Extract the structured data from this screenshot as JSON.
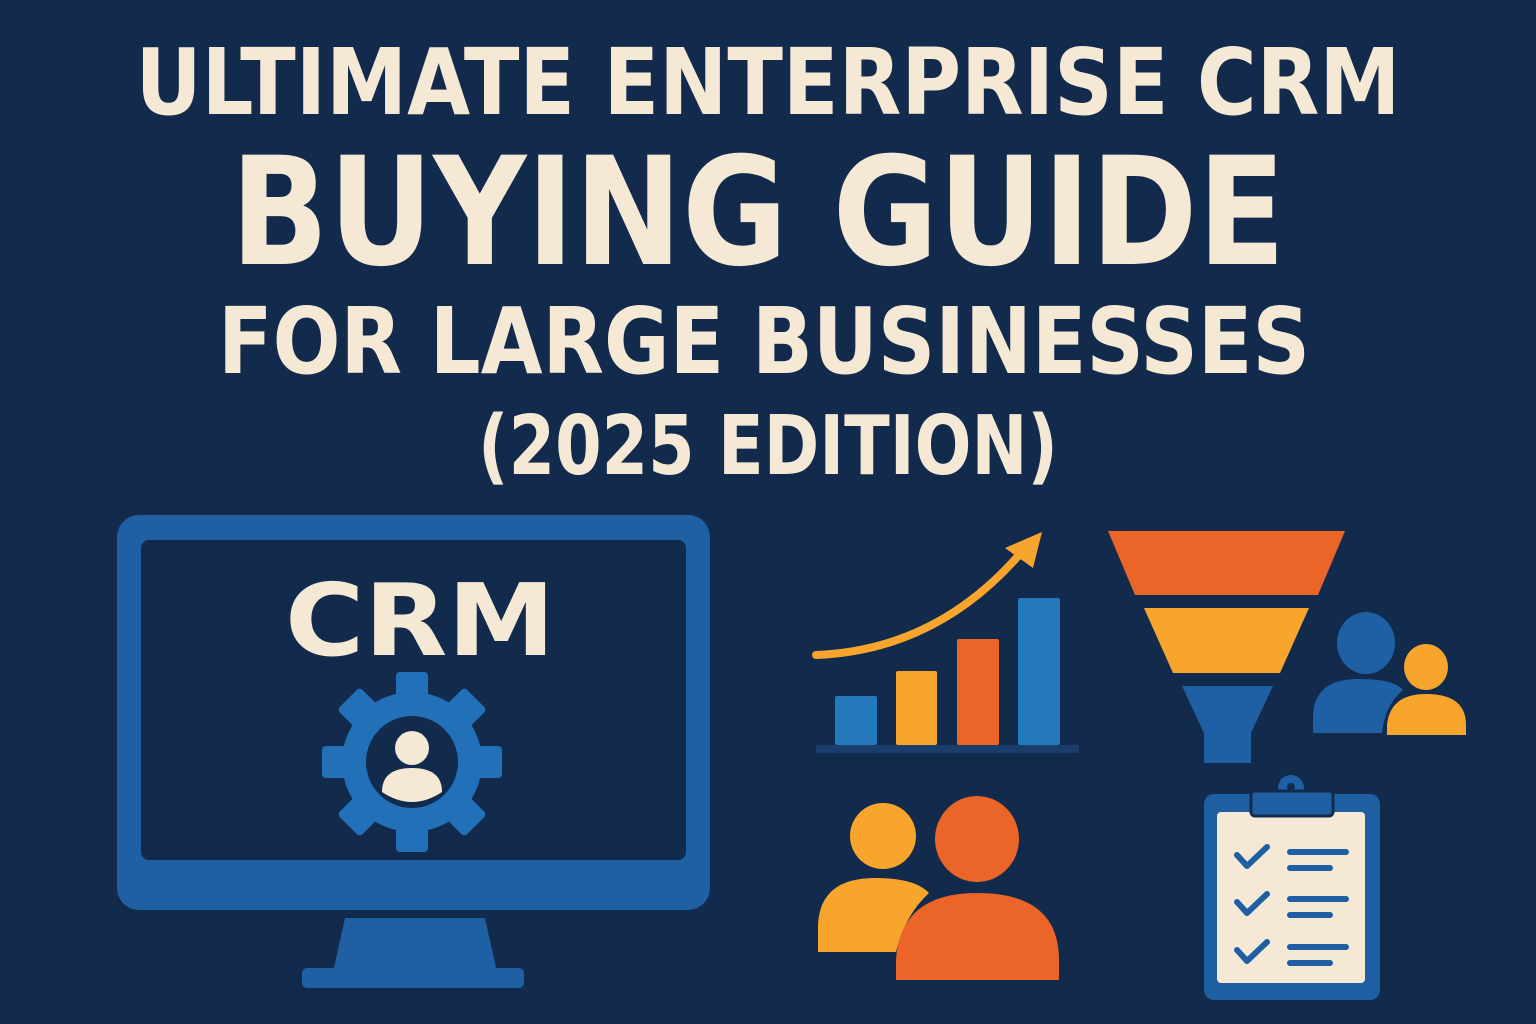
{
  "title": {
    "line1": "ULTIMATE ENTERPRISE CRM",
    "line2": "BUYING GUIDE",
    "line3": "FOR LARGE BUSINESSES",
    "line4": "(2025 EDITION)"
  },
  "monitor": {
    "screen_label": "CRM",
    "icon": "gear-user-icon"
  },
  "icons": [
    "growth-bar-chart-icon",
    "sales-funnel-icon",
    "user-group-icon",
    "team-icon",
    "checklist-clipboard-icon"
  ],
  "colors": {
    "background": "#122b4c",
    "text": "#f5e9d6",
    "blue": "#1f63a8",
    "light_blue": "#2479bd",
    "orange": "#ea6527",
    "yellow": "#f8a52d"
  }
}
